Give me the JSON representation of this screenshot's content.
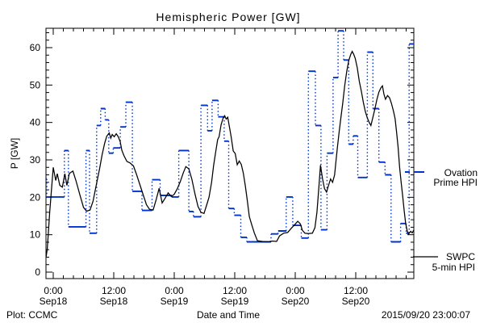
{
  "title": "Hemispheric Power [GW]",
  "footer": {
    "left": "Plot: CCMC",
    "timestamp": "2015/09/20 23:00:07"
  },
  "legend": {
    "ovation_line1": "Ovation",
    "ovation_line2": "Prime HPI",
    "swpc_line1": "SWPC",
    "swpc_line2": "5-min HPI"
  },
  "colors": {
    "ovation": "#0033cc",
    "swpc": "#000000",
    "axis": "#000000",
    "background": "#ffffff"
  },
  "chart_data": {
    "type": "line",
    "title": "Hemispheric Power [GW]",
    "xlabel": "Date and Time",
    "ylabel": "P [GW]",
    "ylim": [
      0,
      65
    ],
    "y_ticks": [
      0,
      10,
      20,
      30,
      40,
      50,
      60
    ],
    "y_minor_step": 2,
    "x_hours_domain": [
      -1.44,
      71.52
    ],
    "x_minor_step_hours": 2,
    "x_ticks": [
      {
        "t": 0,
        "time": "0:00",
        "date": "Sep18"
      },
      {
        "t": 12,
        "time": "12:00",
        "date": "Sep18"
      },
      {
        "t": 24,
        "time": "0:00",
        "date": "Sep19"
      },
      {
        "t": 36,
        "time": "12:00",
        "date": "Sep19"
      },
      {
        "t": 48,
        "time": "0:00",
        "date": "Sep20"
      },
      {
        "t": 60,
        "time": "12:00",
        "date": "Sep20"
      }
    ],
    "legend_position": "right-outside",
    "grid": false,
    "series": [
      {
        "name": "SWPC 5-min HPI",
        "color": "#000000",
        "style": "solid",
        "points": [
          [
            -1.44,
            3.9
          ],
          [
            -1.2,
            6
          ],
          [
            -1,
            10
          ],
          [
            -0.7,
            16
          ],
          [
            -0.35,
            22
          ],
          [
            0,
            28
          ],
          [
            0.5,
            24.5
          ],
          [
            0.8,
            26.3
          ],
          [
            1.3,
            23.2
          ],
          [
            1.8,
            22.7
          ],
          [
            2.3,
            26.3
          ],
          [
            2.7,
            23.2
          ],
          [
            3.2,
            26.4
          ],
          [
            3.9,
            27
          ],
          [
            4.5,
            24.5
          ],
          [
            5.3,
            20.6
          ],
          [
            6,
            17.3
          ],
          [
            6.6,
            16.3
          ],
          [
            7.3,
            16.6
          ],
          [
            7.9,
            19
          ],
          [
            8.5,
            23
          ],
          [
            9.2,
            27.7
          ],
          [
            9.7,
            31.4
          ],
          [
            10.2,
            34.5
          ],
          [
            10.6,
            36.3
          ],
          [
            11.1,
            37.2
          ],
          [
            11.4,
            35.8
          ],
          [
            11.7,
            36.8
          ],
          [
            12.1,
            36.2
          ],
          [
            12.5,
            37
          ],
          [
            12.9,
            36.2
          ],
          [
            13.3,
            34.8
          ],
          [
            13.6,
            32.6
          ],
          [
            14,
            31.2
          ],
          [
            14.6,
            29.6
          ],
          [
            15.2,
            29.2
          ],
          [
            15.9,
            28.4
          ],
          [
            16.5,
            26.2
          ],
          [
            17.2,
            23.3
          ],
          [
            17.9,
            20.4
          ],
          [
            18.5,
            18
          ],
          [
            19.1,
            16.8
          ],
          [
            19.8,
            16.6
          ],
          [
            20.4,
            19.3
          ],
          [
            21,
            22.4
          ],
          [
            21.6,
            18.5
          ],
          [
            22.2,
            19.8
          ],
          [
            22.8,
            21.2
          ],
          [
            23.4,
            20.2
          ],
          [
            24,
            20.8
          ],
          [
            24.6,
            22.3
          ],
          [
            25.2,
            24.2
          ],
          [
            25.8,
            26.6
          ],
          [
            26.3,
            28.2
          ],
          [
            26.9,
            27.6
          ],
          [
            27.5,
            24.8
          ],
          [
            28.1,
            21
          ],
          [
            28.7,
            17.6
          ],
          [
            29.3,
            16
          ],
          [
            29.9,
            15.7
          ],
          [
            30.4,
            17.8
          ],
          [
            30.9,
            20
          ],
          [
            31.4,
            24
          ],
          [
            31.8,
            28.5
          ],
          [
            32.2,
            32
          ],
          [
            32.6,
            35.4
          ],
          [
            32.9,
            36.2
          ],
          [
            33.3,
            39.4
          ],
          [
            33.7,
            41.2
          ],
          [
            34,
            41.8
          ],
          [
            34.3,
            40.9
          ],
          [
            34.6,
            41.4
          ],
          [
            34.9,
            39.2
          ],
          [
            35.3,
            36.1
          ],
          [
            35.7,
            32.4
          ],
          [
            36.1,
            31.7
          ],
          [
            36.5,
            28.7
          ],
          [
            36.9,
            29.7
          ],
          [
            37.3,
            28.8
          ],
          [
            37.7,
            26.5
          ],
          [
            38.1,
            23.1
          ],
          [
            38.5,
            19.1
          ],
          [
            38.9,
            14.8
          ],
          [
            39.4,
            12.5
          ],
          [
            39.9,
            10.4
          ],
          [
            40.5,
            8.4
          ],
          [
            41.5,
            8.2
          ],
          [
            42.5,
            8.1
          ],
          [
            43.5,
            8.3
          ],
          [
            44.3,
            8.2
          ],
          [
            44.9,
            9.7
          ],
          [
            45.7,
            10.4
          ],
          [
            46.5,
            10.6
          ],
          [
            47.2,
            11.7
          ],
          [
            47.9,
            12.7
          ],
          [
            48.5,
            13.6
          ],
          [
            49,
            12.9
          ],
          [
            49.4,
            11.2
          ],
          [
            49.9,
            10.4
          ],
          [
            50.6,
            10.3
          ],
          [
            51.4,
            10.4
          ],
          [
            51.9,
            11.9
          ],
          [
            52.3,
            16
          ],
          [
            52.7,
            23
          ],
          [
            53,
            28.6
          ],
          [
            53.4,
            25
          ],
          [
            53.8,
            22.3
          ],
          [
            54.2,
            21.4
          ],
          [
            54.6,
            23.2
          ],
          [
            55,
            24.9
          ],
          [
            55.4,
            24
          ],
          [
            55.8,
            26
          ],
          [
            56.1,
            29.9
          ],
          [
            56.4,
            33.8
          ],
          [
            56.7,
            37.4
          ],
          [
            57,
            40.8
          ],
          [
            57.4,
            45
          ],
          [
            57.8,
            49.8
          ],
          [
            58.2,
            53.6
          ],
          [
            58.6,
            56.5
          ],
          [
            59,
            58.2
          ],
          [
            59.3,
            59
          ],
          [
            59.6,
            58.2
          ],
          [
            59.9,
            57.1
          ],
          [
            60.3,
            54.6
          ],
          [
            60.7,
            51
          ],
          [
            61.1,
            48.4
          ],
          [
            61.5,
            45.4
          ],
          [
            61.9,
            42.9
          ],
          [
            62.3,
            41.2
          ],
          [
            62.7,
            39.9
          ],
          [
            63,
            39.2
          ],
          [
            63.4,
            41.4
          ],
          [
            63.8,
            43.7
          ],
          [
            64.2,
            46.2
          ],
          [
            64.6,
            48.1
          ],
          [
            65,
            49.3
          ],
          [
            65.3,
            49.8
          ],
          [
            65.6,
            47.5
          ],
          [
            65.9,
            46.2
          ],
          [
            66.3,
            47.2
          ],
          [
            66.7,
            46.6
          ],
          [
            67.1,
            45
          ],
          [
            67.5,
            42.9
          ],
          [
            67.8,
            41
          ],
          [
            68.1,
            37.5
          ],
          [
            68.4,
            33.4
          ],
          [
            68.7,
            28
          ],
          [
            69,
            24
          ],
          [
            69.3,
            20.5
          ],
          [
            69.6,
            16.5
          ],
          [
            69.9,
            13
          ],
          [
            70.2,
            11
          ],
          [
            70.5,
            10.2
          ],
          [
            70.9,
            10.9
          ],
          [
            71.2,
            10.5
          ],
          [
            71.5,
            11.2
          ]
        ]
      },
      {
        "name": "Ovation Prime HPI",
        "color": "#0033cc",
        "style": "steps-with-dotted-connectors",
        "steps": [
          [
            -1.44,
            -1.28,
            24.9
          ],
          [
            -1.28,
            2.2,
            20.1
          ],
          [
            2.2,
            3,
            32.5
          ],
          [
            3,
            6.5,
            12.1
          ],
          [
            6.5,
            7.2,
            32.5
          ],
          [
            7.2,
            8.6,
            10.4
          ],
          [
            8.6,
            9.4,
            39.2
          ],
          [
            9.4,
            10.3,
            43.7
          ],
          [
            10.3,
            11,
            40.7
          ],
          [
            11,
            11.9,
            31.8
          ],
          [
            11.9,
            13.3,
            33.2
          ],
          [
            13.3,
            14.4,
            38.8
          ],
          [
            14.4,
            15.7,
            45.4
          ],
          [
            15.7,
            17.6,
            21.6
          ],
          [
            17.6,
            19.6,
            16.5
          ],
          [
            19.6,
            21.2,
            24.7
          ],
          [
            21.2,
            23.5,
            20.5
          ],
          [
            23.5,
            24.9,
            20.1
          ],
          [
            24.9,
            26.9,
            32.5
          ],
          [
            26.9,
            27.8,
            16.2
          ],
          [
            27.8,
            29.3,
            14.8
          ],
          [
            29.3,
            30.6,
            44.6
          ],
          [
            30.6,
            31.5,
            37.8
          ],
          [
            31.5,
            32.7,
            45.9
          ],
          [
            32.7,
            33.9,
            41.5
          ],
          [
            33.9,
            34.8,
            35
          ],
          [
            34.8,
            35.9,
            17
          ],
          [
            35.9,
            37.2,
            15.2
          ],
          [
            37.2,
            38.4,
            9.3
          ],
          [
            38.4,
            43.2,
            8.1
          ],
          [
            43.2,
            44.6,
            10.2
          ],
          [
            44.6,
            46.2,
            11
          ],
          [
            46.2,
            47.5,
            20.1
          ],
          [
            47.5,
            49.2,
            12.5
          ],
          [
            49.2,
            50.6,
            9.1
          ],
          [
            50.6,
            52,
            53.7
          ],
          [
            52,
            53.1,
            39.2
          ],
          [
            53.1,
            54.3,
            11.3
          ],
          [
            54.3,
            55.5,
            31.8
          ],
          [
            55.5,
            56.5,
            52
          ],
          [
            56.5,
            57.6,
            64.5
          ],
          [
            57.6,
            58.6,
            56.7
          ],
          [
            58.6,
            59.5,
            34.2
          ],
          [
            59.5,
            60.4,
            36.4
          ],
          [
            60.4,
            62.3,
            25.3
          ],
          [
            62.3,
            63.4,
            58.8
          ],
          [
            63.4,
            64.6,
            43.7
          ],
          [
            64.6,
            65.8,
            29.4
          ],
          [
            65.8,
            67,
            26
          ],
          [
            67,
            68.9,
            8.1
          ],
          [
            68.9,
            70,
            13
          ],
          [
            70,
            70.6,
            10.4
          ],
          [
            70.6,
            71.52,
            61
          ]
        ]
      }
    ]
  }
}
